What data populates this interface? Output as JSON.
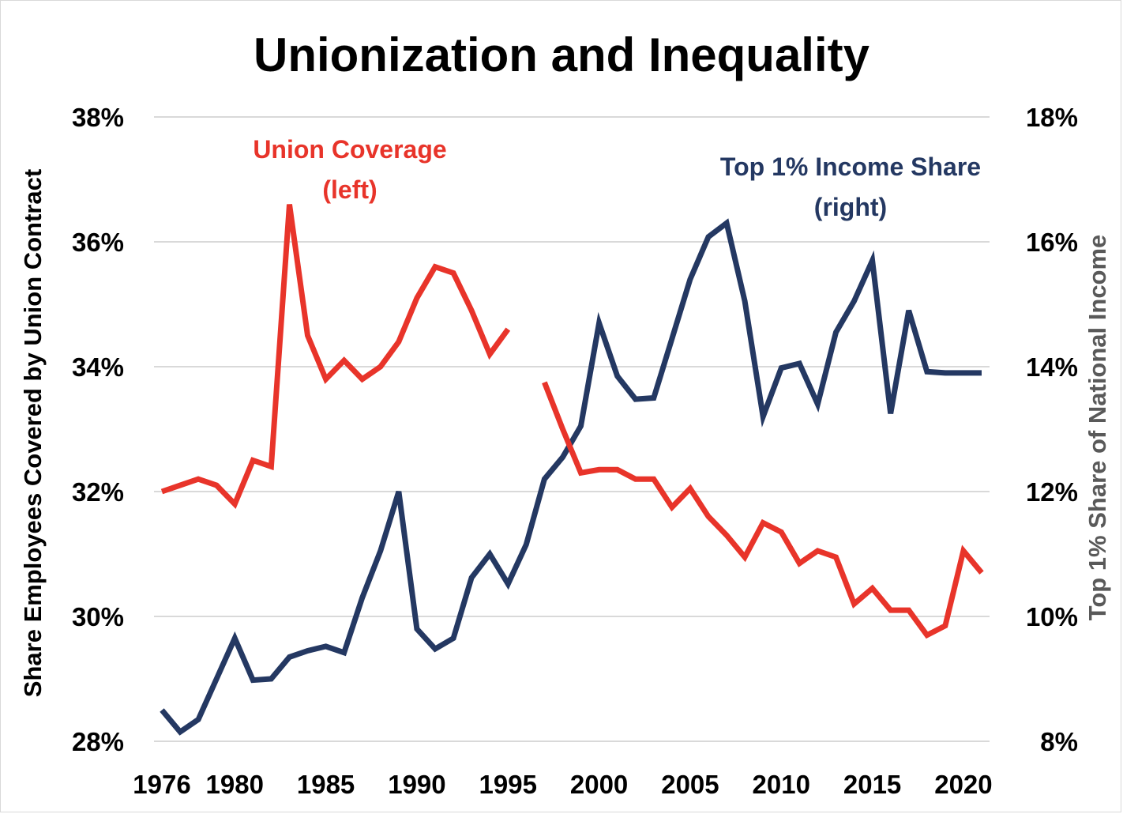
{
  "chart_data": {
    "type": "line",
    "title": "Unionization and Inequality",
    "ylabel_left": "Share Employees Covered by Union Contract",
    "ylabel_right": "Top 1% Share of National Income",
    "ylim_left": [
      28,
      38
    ],
    "ylim_right": [
      8,
      18
    ],
    "xlim": [
      1976,
      2021
    ],
    "x_tick_labels": [
      "1976",
      "1980",
      "1985",
      "1990",
      "1995",
      "2000",
      "2005",
      "2010",
      "2015",
      "2020"
    ],
    "x_ticks": [
      1976,
      1980,
      1985,
      1990,
      1995,
      2000,
      2005,
      2010,
      2015,
      2020
    ],
    "left_tick_labels": [
      "28%",
      "30%",
      "32%",
      "34%",
      "36%",
      "38%"
    ],
    "left_ticks": [
      28,
      30,
      32,
      34,
      36,
      38
    ],
    "right_tick_labels": [
      "8%",
      "10%",
      "12%",
      "14%",
      "16%",
      "18%"
    ],
    "right_ticks": [
      8,
      10,
      12,
      14,
      16,
      18
    ],
    "grid": true,
    "colors": {
      "union": "#e8342a",
      "top1": "#243862",
      "grid": "#d9d9d9",
      "right_label": "#595959"
    },
    "series": [
      {
        "name": "Union Coverage",
        "axis": "left",
        "annotation": [
          "Union Coverage",
          "(left)"
        ],
        "segments": [
          {
            "x": [
              1976,
              1977,
              1978,
              1979,
              1980,
              1981,
              1982,
              1983,
              1984,
              1985,
              1986,
              1987,
              1988,
              1989,
              1990,
              1991,
              1992,
              1993,
              1994,
              1995
            ],
            "y": [
              32.0,
              32.1,
              32.2,
              32.1,
              31.8,
              32.5,
              32.4,
              36.6,
              34.5,
              33.8,
              34.1,
              33.8,
              34.0,
              34.4,
              35.1,
              35.6,
              35.5,
              34.9,
              34.2,
              34.6
            ]
          },
          {
            "x": [
              1997,
              1998,
              1999,
              2000,
              2001,
              2002,
              2003,
              2004,
              2005,
              2006,
              2007,
              2008,
              2009,
              2010,
              2011,
              2012,
              2013,
              2014,
              2015,
              2016,
              2017,
              2018,
              2019,
              2020,
              2021
            ],
            "y": [
              33.75,
              33.0,
              32.3,
              32.35,
              32.35,
              32.2,
              32.2,
              31.75,
              32.05,
              31.6,
              31.3,
              30.95,
              31.5,
              31.35,
              30.85,
              31.05,
              30.95,
              30.2,
              30.45,
              30.1,
              30.1,
              29.7,
              29.85,
              31.05,
              30.7
            ]
          }
        ]
      },
      {
        "name": "Top 1% Income Share",
        "axis": "right",
        "annotation": [
          "Top 1% Income Share",
          "(right)"
        ],
        "segments": [
          {
            "x": [
              1976,
              1977,
              1978,
              1979,
              1980,
              1981,
              1982,
              1983,
              1984,
              1985,
              1986,
              1987,
              1988,
              1989,
              1990,
              1991,
              1992,
              1993,
              1994,
              1995,
              1996,
              1997,
              1998,
              1999,
              2000,
              2001,
              2002,
              2003,
              2004,
              2005,
              2006,
              2007,
              2008,
              2009,
              2010,
              2011,
              2012,
              2013,
              2014,
              2015,
              2016,
              2017,
              2018,
              2019,
              2020,
              2021
            ],
            "y": [
              8.5,
              8.15,
              8.35,
              9.0,
              9.65,
              8.98,
              9.0,
              9.35,
              9.45,
              9.52,
              9.42,
              10.3,
              11.05,
              12.0,
              9.8,
              9.48,
              9.65,
              10.62,
              11.0,
              10.52,
              11.15,
              12.2,
              12.55,
              13.05,
              14.7,
              13.85,
              13.48,
              13.5,
              14.45,
              15.4,
              16.08,
              16.3,
              15.05,
              13.2,
              13.98,
              14.05,
              13.4,
              14.55,
              15.05,
              15.7,
              13.25,
              14.9,
              13.92,
              13.9,
              13.9,
              13.9
            ]
          }
        ]
      }
    ]
  }
}
